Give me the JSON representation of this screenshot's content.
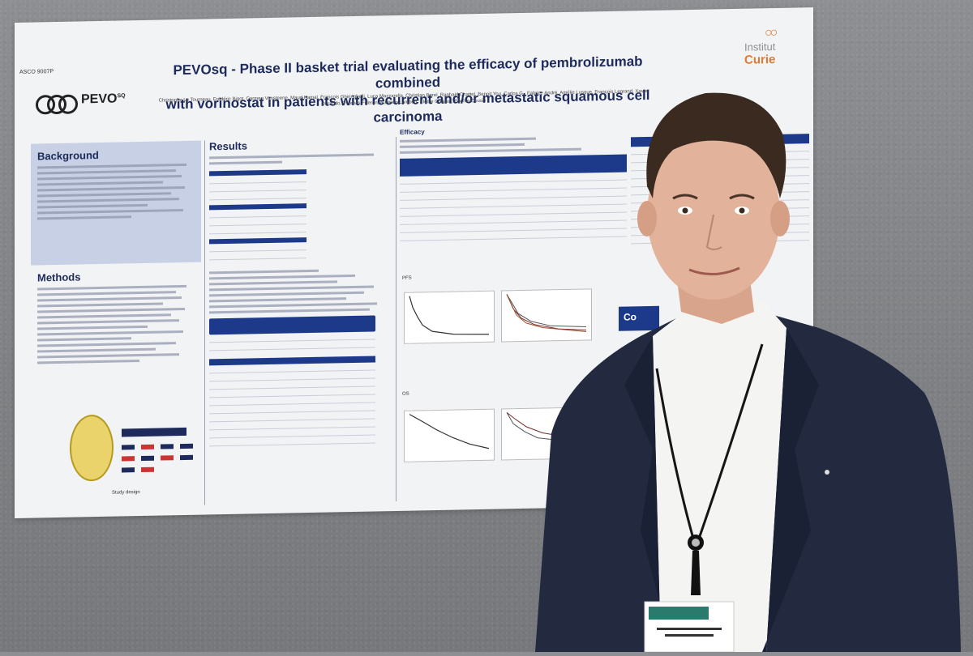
{
  "poster": {
    "code": "ASCO 9007P",
    "logo_text": "PEVO",
    "logo_sup": "SQ",
    "title_line1": "PEVOsq - Phase II basket trial evaluating the efficacy of pembrolizumab combined",
    "title_line2": "with vorinostat in patients with recurrent and/or metastatic squamous cell carcinoma",
    "authors": "Christophe Le Tourneau, Frédéric Bigot, Carmen Vansteene, Maud Kamal, François Ghiringhelli, Luca Mazzarella, Christian Borel, Raphaël Chattel, Benoit You, Carlos G., Fabrice André, Amélie Lusque, François Legrand, Xavier Durando, Thomas Filleron, Aurélien Lambert, Elodie Coquan, Sophie Cousin",
    "institut_line1": "Institut",
    "institut_line2": "Curie",
    "sections": {
      "background": "Background",
      "methods": "Methods",
      "results": "Results",
      "efficacy": "Efficacy",
      "pfs": "PFS",
      "os": "OS",
      "study_design": "Study design",
      "conclusion_stub": "Co"
    }
  },
  "colors": {
    "navy": "#1d2a5b",
    "table_blue": "#1d3a8a",
    "curie_orange": "#e07a33",
    "suit": "#232a40",
    "shirt": "#f4f4f2"
  }
}
